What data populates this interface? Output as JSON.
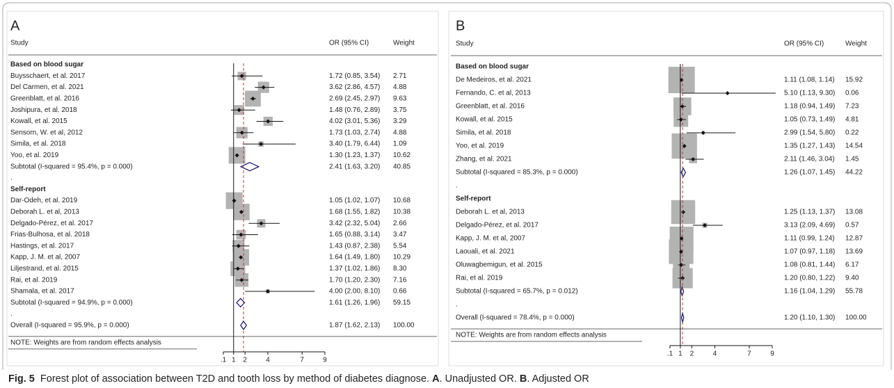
{
  "chart_data": [
    {
      "type": "forest",
      "panel_label": "A",
      "columns": [
        "Study",
        "OR (95% CI)",
        "Weight"
      ],
      "xlim": [
        0.1,
        9
      ],
      "xticks": [
        {
          "value": 0.1,
          "label": ".1"
        },
        1,
        2,
        4,
        7,
        9
      ],
      "null_line": 1,
      "box_color": "#b3b3b3",
      "diamond_color": "#1c1c80",
      "overall_line_color": "#c0392b",
      "groups": [
        {
          "name": "Based on blood sugar",
          "gap_label": ".",
          "studies": [
            {
              "name": "Buysschaert, et al. 2017",
              "or": 1.72,
              "lo": 0.85,
              "hi": 3.54,
              "weight": 2.71,
              "ci_label": "1.72 (0.85, 3.54)",
              "weight_label": "2.71"
            },
            {
              "name": "Del Carmen, et al. 2021",
              "or": 3.62,
              "lo": 2.86,
              "hi": 4.57,
              "weight": 4.88,
              "ci_label": "3.62 (2.86, 4.57)",
              "weight_label": "4.88"
            },
            {
              "name": "Greenblatt, et al. 2016",
              "or": 2.69,
              "lo": 2.45,
              "hi": 2.97,
              "weight": 9.63,
              "ci_label": "2.69 (2.45, 2.97)",
              "weight_label": "9.63"
            },
            {
              "name": "Joshipura, et al. 2018",
              "or": 1.48,
              "lo": 0.76,
              "hi": 2.89,
              "weight": 3.75,
              "ci_label": "1.48 (0.76, 2.89)",
              "weight_label": "3.75"
            },
            {
              "name": "Kowall, et al. 2015",
              "or": 4.02,
              "lo": 3.01,
              "hi": 5.36,
              "weight": 3.29,
              "ci_label": "4.02 (3.01, 5.36)",
              "weight_label": "3.29"
            },
            {
              "name": "Sensorn, W. et al, 2012",
              "or": 1.73,
              "lo": 1.03,
              "hi": 2.74,
              "weight": 4.88,
              "ci_label": "1.73 (1.03, 2.74)",
              "weight_label": "4.88"
            },
            {
              "name": "Simila, et al. 2018",
              "or": 3.4,
              "lo": 1.79,
              "hi": 6.44,
              "weight": 1.09,
              "ci_label": "3.40 (1.79, 6.44)",
              "weight_label": "1.09"
            },
            {
              "name": "Yoo, et al. 2019",
              "or": 1.3,
              "lo": 1.23,
              "hi": 1.37,
              "weight": 10.62,
              "ci_label": "1.30 (1.23, 1.37)",
              "weight_label": "10.62"
            }
          ],
          "subtotal": {
            "name": "Subtotal  (I-squared = 95.4%, p = 0.000)",
            "or": 2.41,
            "lo": 1.63,
            "hi": 3.2,
            "weight": 40.85,
            "ci_label": "2.41 (1.63, 3.20)",
            "weight_label": "40.85"
          }
        },
        {
          "name": "Self-report",
          "gap_label": ".",
          "studies": [
            {
              "name": "Dar-Odeh, et al. 2019",
              "or": 1.05,
              "lo": 1.02,
              "hi": 1.07,
              "weight": 10.68,
              "ci_label": "1.05 (1.02, 1.07)",
              "weight_label": "10.68"
            },
            {
              "name": "Deborah L. et al, 2013",
              "or": 1.68,
              "lo": 1.55,
              "hi": 1.82,
              "weight": 10.38,
              "ci_label": "1.68 (1.55, 1.82)",
              "weight_label": "10.38"
            },
            {
              "name": "Delgado-Pérez, et al. 2017",
              "or": 3.42,
              "lo": 2.32,
              "hi": 5.04,
              "weight": 2.66,
              "ci_label": "3.42 (2.32, 5.04)",
              "weight_label": "2.66"
            },
            {
              "name": "Frias-Bulhosa, et al. 2018",
              "or": 1.65,
              "lo": 0.88,
              "hi": 3.14,
              "weight": 3.47,
              "ci_label": "1.65 (0.88, 3.14)",
              "weight_label": "3.47"
            },
            {
              "name": "Hastings, et al. 2017",
              "or": 1.43,
              "lo": 0.87,
              "hi": 2.38,
              "weight": 5.54,
              "ci_label": "1.43 (0.87, 2.38)",
              "weight_label": "5.54"
            },
            {
              "name": "Kapp, J. M. et al, 2007",
              "or": 1.64,
              "lo": 1.49,
              "hi": 1.8,
              "weight": 10.29,
              "ci_label": "1.64 (1.49, 1.80)",
              "weight_label": "10.29"
            },
            {
              "name": "Liljestrand, et al. 2015",
              "or": 1.37,
              "lo": 1.02,
              "hi": 1.86,
              "weight": 8.3,
              "ci_label": "1.37 (1.02, 1.86)",
              "weight_label": "8.30"
            },
            {
              "name": "Rai, et al. 2019",
              "or": 1.7,
              "lo": 1.2,
              "hi": 2.3,
              "weight": 7.16,
              "ci_label": "1.70 (1.20, 2.30)",
              "weight_label": "7.16"
            },
            {
              "name": "Shamala, et al. 2017",
              "or": 4.0,
              "lo": 2.0,
              "hi": 8.1,
              "weight": 0.66,
              "ci_label": "4.00 (2.00, 8.10)",
              "weight_label": "0.66"
            }
          ],
          "subtotal": {
            "name": "Subtotal  (I-squared = 94.9%, p = 0.000)",
            "or": 1.61,
            "lo": 1.26,
            "hi": 1.96,
            "weight": 59.15,
            "ci_label": "1.61 (1.26, 1.96)",
            "weight_label": "59.15"
          }
        }
      ],
      "overall": {
        "name": "Overall  (I-squared = 95.9%, p = 0.000)",
        "or": 1.87,
        "lo": 1.62,
        "hi": 2.13,
        "weight": 100,
        "ci_label": "1.87 (1.62, 2.13)",
        "weight_label": "100.00"
      },
      "note": "NOTE: Weights are from random effects analysis"
    },
    {
      "type": "forest",
      "panel_label": "B",
      "columns": [
        "Study",
        "OR (95% CI)",
        "Weight"
      ],
      "xlim": [
        0.1,
        9
      ],
      "xticks": [
        {
          "value": 0.1,
          "label": ".1"
        },
        1,
        2,
        4,
        7,
        9
      ],
      "null_line": 1,
      "box_color": "#b3b3b3",
      "diamond_color": "#1c1c80",
      "overall_line_color": "#c0392b",
      "groups": [
        {
          "name": "Based on blood sugar",
          "gap_label": ".",
          "studies": [
            {
              "name": "De Medeiros, et al. 2021",
              "or": 1.11,
              "lo": 1.08,
              "hi": 1.14,
              "weight": 15.92,
              "ci_label": "1.11 (1.08, 1.14)",
              "weight_label": "15.92"
            },
            {
              "name": "Fernando, C. et al, 2013",
              "or": 5.1,
              "lo": 1.13,
              "hi": 9.3,
              "weight": 0.06,
              "ci_label": "5.10 (1.13, 9.30)",
              "weight_label": "0.06"
            },
            {
              "name": "Greenblatt, et al. 2016",
              "or": 1.18,
              "lo": 0.94,
              "hi": 1.49,
              "weight": 7.23,
              "ci_label": "1.18 (0.94, 1.49)",
              "weight_label": "7.23"
            },
            {
              "name": "Kowall, et al. 2015",
              "or": 1.05,
              "lo": 0.73,
              "hi": 1.49,
              "weight": 4.81,
              "ci_label": "1.05 (0.73, 1.49)",
              "weight_label": "4.81"
            },
            {
              "name": "Simila, et al. 2018",
              "or": 2.99,
              "lo": 1.54,
              "hi": 5.8,
              "weight": 0.22,
              "ci_label": "2.99 (1.54, 5.80)",
              "weight_label": "0.22"
            },
            {
              "name": "Yoo, et al. 2019",
              "or": 1.35,
              "lo": 1.27,
              "hi": 1.43,
              "weight": 14.54,
              "ci_label": "1.35 (1.27, 1.43)",
              "weight_label": "14.54"
            },
            {
              "name": "Zhang, et al. 2021",
              "or": 2.11,
              "lo": 1.46,
              "hi": 3.04,
              "weight": 1.45,
              "ci_label": "2.11 (1.46, 3.04)",
              "weight_label": "1.45"
            }
          ],
          "subtotal": {
            "name": "Subtotal  (I-squared = 85.3%, p = 0.000)",
            "or": 1.26,
            "lo": 1.07,
            "hi": 1.45,
            "weight": 44.22,
            "ci_label": "1.26 (1.07, 1.45)",
            "weight_label": "44.22"
          }
        },
        {
          "name": "Self-report",
          "gap_label": ".",
          "studies": [
            {
              "name": "Deborah L. et al, 2013",
              "or": 1.25,
              "lo": 1.13,
              "hi": 1.37,
              "weight": 13.08,
              "ci_label": "1.25 (1.13, 1.37)",
              "weight_label": "13.08"
            },
            {
              "name": "Delgado-Pérez, et al. 2017",
              "or": 3.13,
              "lo": 2.09,
              "hi": 4.69,
              "weight": 0.57,
              "ci_label": "3.13 (2.09, 4.69)",
              "weight_label": "0.57"
            },
            {
              "name": "Kapp, J. M. et al, 2007",
              "or": 1.11,
              "lo": 0.99,
              "hi": 1.24,
              "weight": 12.87,
              "ci_label": "1.11 (0.99, 1.24)",
              "weight_label": "12.87"
            },
            {
              "name": "Laouali, et al. 2021",
              "or": 1.07,
              "lo": 0.97,
              "hi": 1.18,
              "weight": 13.69,
              "ci_label": "1.07 (0.97, 1.18)",
              "weight_label": "13.69"
            },
            {
              "name": "Oluwagbemigun, et al. 2015",
              "or": 1.08,
              "lo": 0.81,
              "hi": 1.44,
              "weight": 6.17,
              "ci_label": "1.08 (0.81, 1.44)",
              "weight_label": "6.17"
            },
            {
              "name": "Rai, et al. 2019",
              "or": 1.2,
              "lo": 0.8,
              "hi": 1.22,
              "weight": 9.4,
              "ci_label": "1.20 (0.80, 1.22)",
              "weight_label": "9.40"
            }
          ],
          "subtotal": {
            "name": "Subtotal  (I-squared = 65.7%, p = 0.012)",
            "or": 1.16,
            "lo": 1.04,
            "hi": 1.29,
            "weight": 55.78,
            "ci_label": "1.16 (1.04, 1.29)",
            "weight_label": "55.78"
          }
        }
      ],
      "overall": {
        "name": "Overall  (I-squared = 78.4%, p = 0.000)",
        "or": 1.2,
        "lo": 1.1,
        "hi": 1.3,
        "weight": 100,
        "ci_label": "1.20 (1.10, 1.30)",
        "weight_label": "100.00"
      },
      "note": "NOTE: Weights are from random effects analysis"
    }
  ],
  "caption": [
    {
      "text": "Fig. 5",
      "bold": true
    },
    {
      "text": "  Forest plot of association between T2D and tooth loss by method of diabetes diagnose. ",
      "bold": false
    },
    {
      "text": "A",
      "bold": true
    },
    {
      "text": ". Unadjusted OR. ",
      "bold": false
    },
    {
      "text": "B",
      "bold": true
    },
    {
      "text": ". Adjusted OR",
      "bold": false
    }
  ]
}
